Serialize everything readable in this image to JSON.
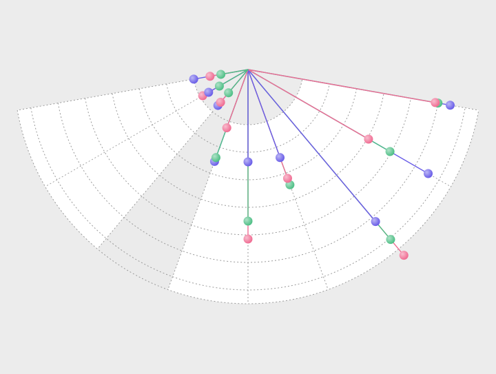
{
  "chart_data": {
    "type": "polar-line",
    "categories": [
      null,
      null,
      null,
      null,
      null,
      null,
      null,
      null,
      null
    ],
    "anglelim": [
      170,
      10
    ],
    "rlim": [
      0,
      85
    ],
    "rticks": [
      20,
      30,
      40,
      50,
      60,
      70,
      80
    ],
    "grid": true,
    "series": [
      {
        "color": "#6a5ee8",
        "values": [
          20,
          16.5,
          17,
          35.5,
          33.5,
          34,
          72,
          75.5,
          74.5
        ]
      },
      {
        "color": "#4fbf86",
        "values": [
          10,
          12,
          11,
          34,
          55,
          44.5,
          80.5,
          59.5,
          70
        ]
      },
      {
        "color": "#f06d93",
        "values": [
          14,
          19,
          15.5,
          22.5,
          61.5,
          42,
          88,
          50.5,
          69
        ]
      }
    ]
  }
}
